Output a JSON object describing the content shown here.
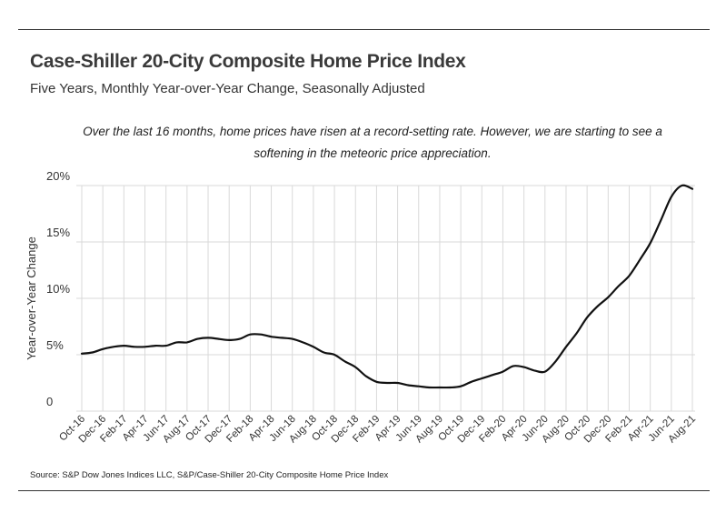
{
  "header": {
    "title": "Case-Shiller 20-City Composite Home Price Index",
    "subtitle": "Five Years, Monthly Year-over-Year Change, Seasonally Adjusted",
    "note": "Over the last 16 months, home prices have risen at a record-setting rate. However, we are starting to see a softening in the meteoric price appreciation."
  },
  "footer": {
    "source": "Source: S&P Dow Jones Indices LLC, S&P/Case-Shiller 20-City Composite Home Price Index"
  },
  "chart_data": {
    "type": "line",
    "ylabel": "Year-over-Year Change",
    "xlabel": "",
    "ylim": [
      0,
      20
    ],
    "yticks": [
      {
        "value": 0,
        "label": "0"
      },
      {
        "value": 5,
        "label": "5%"
      },
      {
        "value": 10,
        "label": "10%"
      },
      {
        "value": 15,
        "label": "15%"
      },
      {
        "value": 20,
        "label": "20%"
      }
    ],
    "grid": true,
    "legend": "none",
    "line_color": "#111111",
    "grid_color": "#d9d9d9",
    "x": [
      "Oct-16",
      "Nov-16",
      "Dec-16",
      "Jan-17",
      "Feb-17",
      "Mar-17",
      "Apr-17",
      "May-17",
      "Jun-17",
      "Jul-17",
      "Aug-17",
      "Sep-17",
      "Oct-17",
      "Nov-17",
      "Dec-17",
      "Jan-18",
      "Feb-18",
      "Mar-18",
      "Apr-18",
      "May-18",
      "Jun-18",
      "Jul-18",
      "Aug-18",
      "Sep-18",
      "Oct-18",
      "Nov-18",
      "Dec-18",
      "Jan-19",
      "Feb-19",
      "Mar-19",
      "Apr-19",
      "May-19",
      "Jun-19",
      "Jul-19",
      "Aug-19",
      "Sep-19",
      "Oct-19",
      "Nov-19",
      "Dec-19",
      "Jan-20",
      "Feb-20",
      "Mar-20",
      "Apr-20",
      "May-20",
      "Jun-20",
      "Jul-20",
      "Aug-20",
      "Sep-20",
      "Oct-20",
      "Nov-20",
      "Dec-20",
      "Jan-21",
      "Feb-21",
      "Mar-21",
      "Apr-21",
      "May-21",
      "Jun-21",
      "Jul-21",
      "Aug-21"
    ],
    "tick_labels": [
      "Oct-16",
      "Dec-16",
      "Feb-17",
      "Apr-17",
      "Jun-17",
      "Aug-17",
      "Oct-17",
      "Dec-17",
      "Feb-18",
      "Apr-18",
      "Jun-18",
      "Aug-18",
      "Oct-18",
      "Dec-18",
      "Feb-19",
      "Apr-19",
      "Jun-19",
      "Aug-19",
      "Oct-19",
      "Dec-19",
      "Feb-20",
      "Apr-20",
      "Jun-20",
      "Aug-20",
      "Oct-20",
      "Dec-20",
      "Feb-21",
      "Apr-21",
      "Jun-21",
      "Aug-21"
    ],
    "series": [
      {
        "values": [
          5.1,
          5.2,
          5.5,
          5.7,
          5.8,
          5.7,
          5.7,
          5.8,
          5.8,
          6.1,
          6.1,
          6.4,
          6.5,
          6.4,
          6.3,
          6.4,
          6.8,
          6.8,
          6.6,
          6.5,
          6.4,
          6.1,
          5.7,
          5.2,
          5.0,
          4.4,
          3.9,
          3.1,
          2.6,
          2.5,
          2.5,
          2.3,
          2.2,
          2.1,
          2.1,
          2.1,
          2.2,
          2.6,
          2.9,
          3.2,
          3.5,
          4.0,
          3.9,
          3.6,
          3.5,
          4.4,
          5.7,
          6.9,
          8.3,
          9.3,
          10.1,
          11.1,
          12.0,
          13.4,
          14.9,
          16.9,
          19.0,
          20.0,
          19.7
        ]
      }
    ]
  }
}
